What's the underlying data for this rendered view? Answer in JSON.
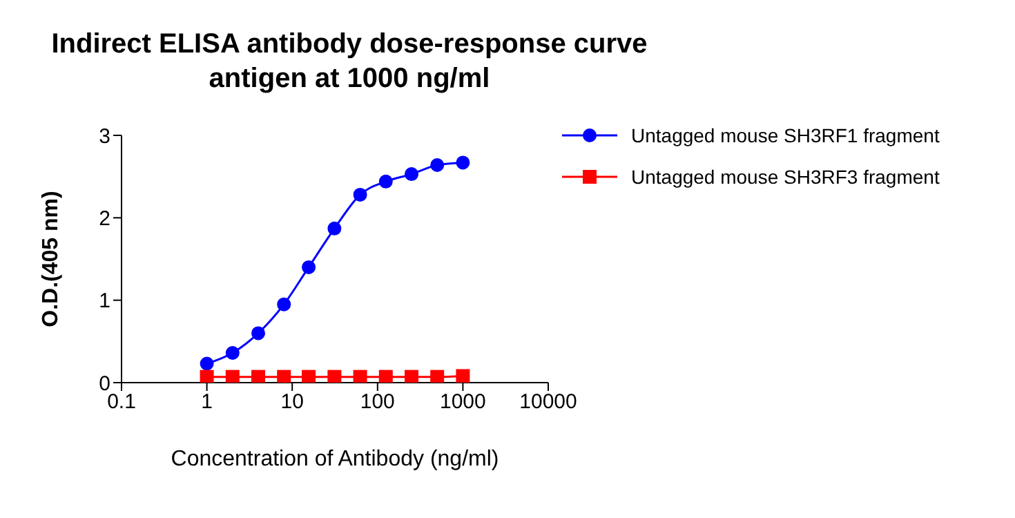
{
  "chart_data": {
    "type": "line",
    "title": "Indirect ELISA antibody dose-response curve",
    "subtitle": "antigen at 1000 ng/ml",
    "xlabel": "Concentration of Antibody (ng/ml)",
    "ylabel": "O.D.(405 nm)",
    "log": "x",
    "xlim": [
      0.1,
      10000
    ],
    "xticks": [
      0.1,
      1,
      10,
      100,
      1000,
      10000
    ],
    "ylim": [
      0,
      3
    ],
    "yticks": [
      0,
      1,
      2,
      3
    ],
    "grid": false,
    "legend": "top right",
    "line_style": "solid",
    "series": [
      {
        "name": "Untagged mouse SH3RF1 fragment",
        "color": "#0000ff",
        "marker": "circle",
        "x": [
          1,
          2,
          4,
          8,
          15.6,
          31.25,
          62.5,
          125,
          250,
          500,
          1000
        ],
        "values": [
          0.23,
          0.36,
          0.6,
          0.95,
          1.4,
          1.87,
          2.28,
          2.44,
          2.53,
          2.64,
          2.67
        ]
      },
      {
        "name": "Untagged mouse SH3RF3 fragment",
        "color": "#ff0000",
        "marker": "square",
        "x": [
          1,
          2,
          4,
          8,
          15.6,
          31.25,
          62.5,
          125,
          250,
          500,
          1000
        ],
        "values": [
          0.07,
          0.07,
          0.07,
          0.07,
          0.07,
          0.07,
          0.07,
          0.07,
          0.07,
          0.07,
          0.08
        ]
      }
    ]
  }
}
